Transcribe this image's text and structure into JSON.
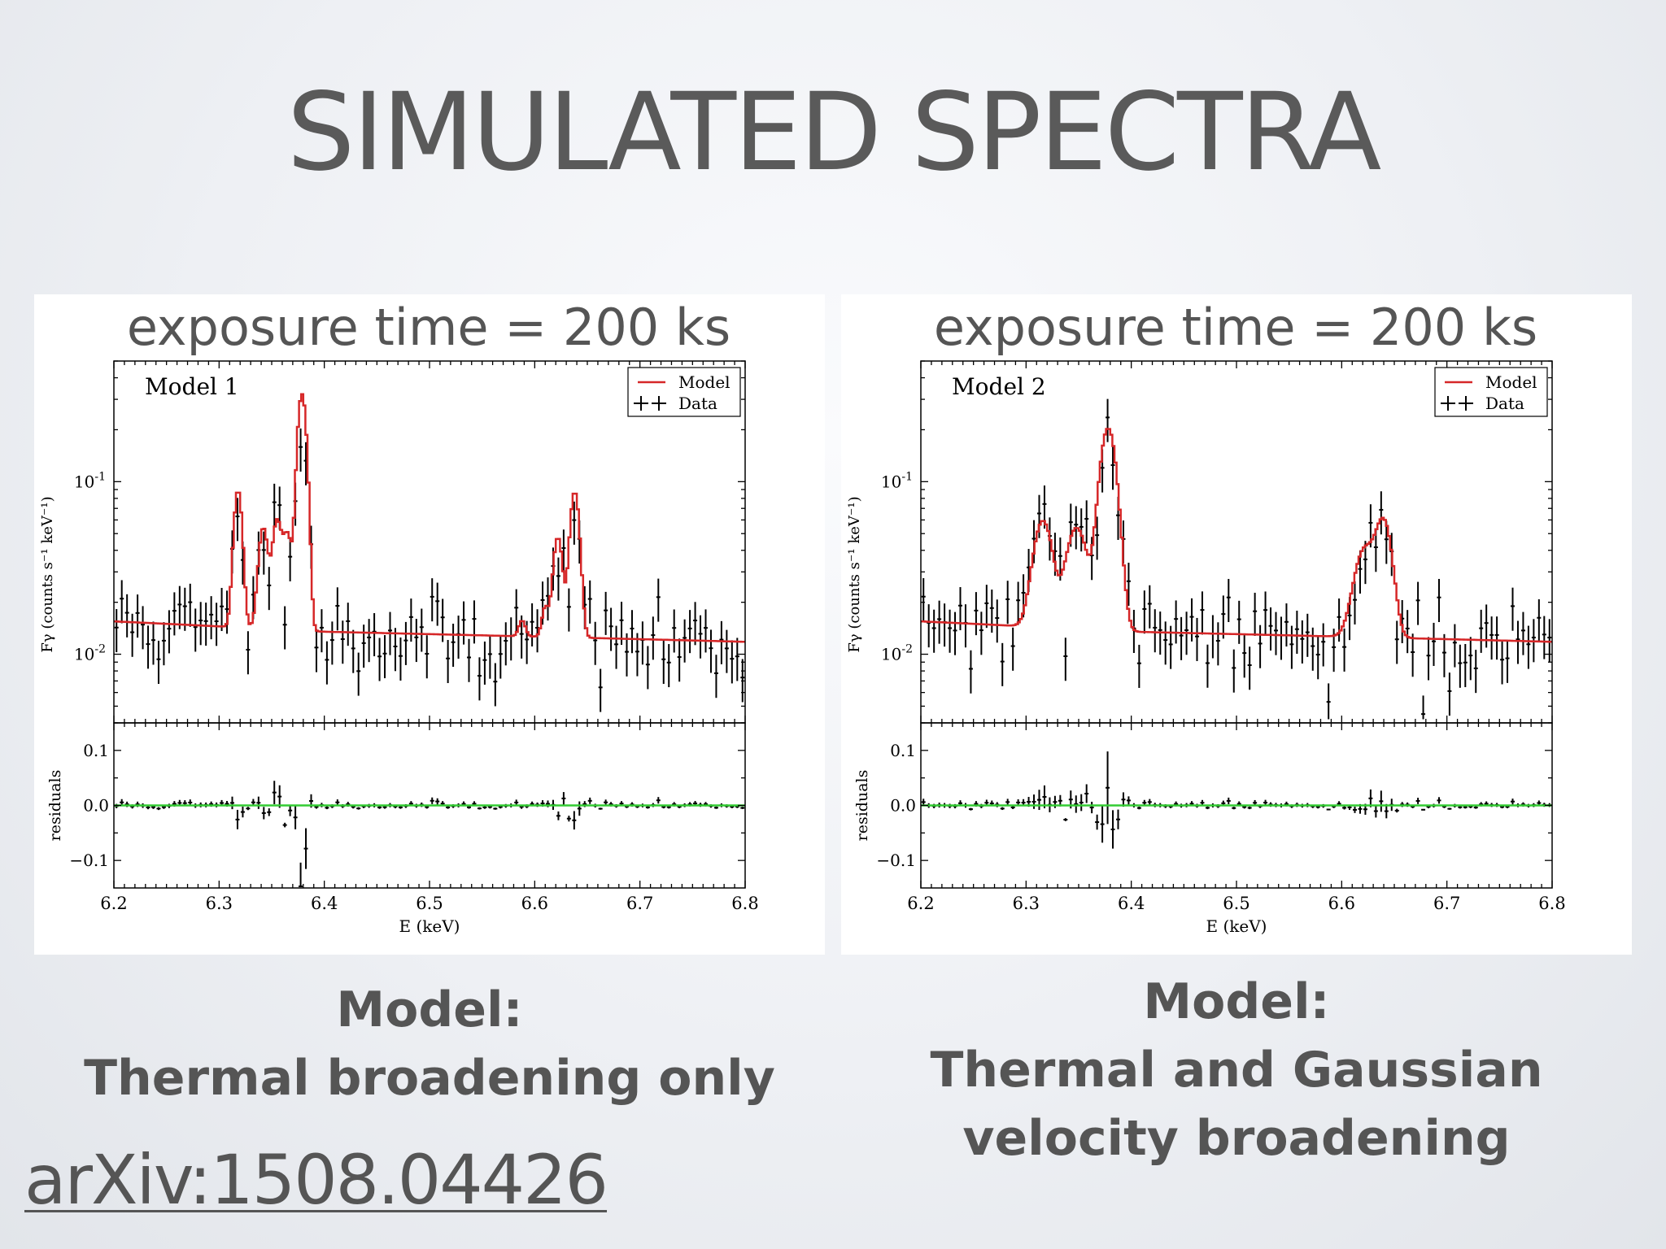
{
  "slide": {
    "title": "SIMULATED SPECTRA"
  },
  "captions": [
    {
      "line1": "Model:",
      "line2": "Thermal broadening only"
    },
    {
      "line1": "Model:",
      "line2": "Thermal and Gaussian",
      "line3": "velocity broadening"
    }
  ],
  "reference": {
    "text": "arXiv:1508.04426"
  },
  "colors": {
    "model": "#d62728",
    "data": "#000000",
    "residual_zero": "#33cc33",
    "text": "#555555"
  },
  "chart_data": [
    {
      "type": "line",
      "title": "exposure time = 200 ks",
      "annotation": "Model 1",
      "legend": [
        "Model",
        "Data"
      ],
      "legend_position": "top-right",
      "xlabel": "E (keV)",
      "ylabel_top": "Fγ (counts s⁻¹ keV⁻¹)",
      "ylabel_bottom": "residuals",
      "xlim": [
        6.2,
        6.8
      ],
      "ylim_top_log": [
        0.004,
        0.5
      ],
      "ylim_bottom": [
        -0.15,
        0.15
      ],
      "x_ticks": [
        "6.2",
        "6.3",
        "6.4",
        "6.5",
        "6.6",
        "6.7",
        "6.8"
      ],
      "y_ticks_top": [
        {
          "value": 0.1,
          "base": "10",
          "exp": "-1"
        },
        {
          "value": 0.01,
          "base": "10",
          "exp": "-2"
        }
      ],
      "y_ticks_bottom": [
        "0.1",
        "0.0",
        "−0.1"
      ],
      "baseline": [
        [
          6.2,
          0.0155
        ],
        [
          6.4,
          0.0135
        ],
        [
          6.8,
          0.0118
        ]
      ],
      "lines": [
        {
          "center": 6.318,
          "sigma": 0.0035,
          "amp": 0.075
        },
        {
          "center": 6.342,
          "sigma": 0.004,
          "amp": 0.04
        },
        {
          "center": 6.355,
          "sigma": 0.004,
          "amp": 0.045
        },
        {
          "center": 6.365,
          "sigma": 0.004,
          "amp": 0.035
        },
        {
          "center": 6.378,
          "sigma": 0.0035,
          "amp": 0.27
        },
        {
          "center": 6.382,
          "sigma": 0.003,
          "amp": 0.08
        },
        {
          "center": 6.588,
          "sigma": 0.003,
          "amp": 0.003
        },
        {
          "center": 6.61,
          "sigma": 0.003,
          "amp": 0.006
        },
        {
          "center": 6.622,
          "sigma": 0.004,
          "amp": 0.035
        },
        {
          "center": 6.638,
          "sigma": 0.004,
          "amp": 0.075
        }
      ],
      "seed": 11
    },
    {
      "type": "line",
      "title": "exposure time = 200 ks",
      "annotation": "Model 2",
      "legend": [
        "Model",
        "Data"
      ],
      "legend_position": "top-right",
      "xlabel": "E (keV)",
      "ylabel_top": "Fγ (counts s⁻¹ keV⁻¹)",
      "ylabel_bottom": "residuals",
      "xlim": [
        6.2,
        6.8
      ],
      "ylim_top_log": [
        0.004,
        0.5
      ],
      "ylim_bottom": [
        -0.15,
        0.15
      ],
      "x_ticks": [
        "6.2",
        "6.3",
        "6.4",
        "6.5",
        "6.6",
        "6.7",
        "6.8"
      ],
      "y_ticks_top": [
        {
          "value": 0.1,
          "base": "10",
          "exp": "-1"
        },
        {
          "value": 0.01,
          "base": "10",
          "exp": "-2"
        }
      ],
      "y_ticks_bottom": [
        "0.1",
        "0.0",
        "−0.1"
      ],
      "baseline": [
        [
          6.2,
          0.0155
        ],
        [
          6.4,
          0.0135
        ],
        [
          6.8,
          0.0118
        ]
      ],
      "lines": [
        {
          "center": 6.316,
          "sigma": 0.008,
          "amp": 0.045
        },
        {
          "center": 6.348,
          "sigma": 0.009,
          "amp": 0.04
        },
        {
          "center": 6.378,
          "sigma": 0.007,
          "amp": 0.19
        },
        {
          "center": 6.622,
          "sigma": 0.009,
          "amp": 0.028
        },
        {
          "center": 6.64,
          "sigma": 0.007,
          "amp": 0.045
        }
      ],
      "seed": 29
    }
  ]
}
